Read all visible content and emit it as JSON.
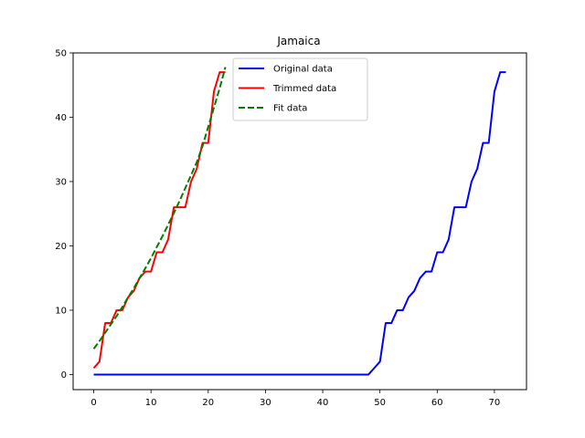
{
  "chart_data": {
    "type": "line",
    "title": "Jamaica",
    "xlabel": "",
    "ylabel": "",
    "xlim": [
      -3.6,
      75.6
    ],
    "ylim": [
      -2.35,
      50
    ],
    "xticks": [
      0,
      10,
      20,
      30,
      40,
      50,
      60,
      70
    ],
    "yticks": [
      0,
      10,
      20,
      30,
      40,
      50
    ],
    "grid": false,
    "legend_position": "top-center",
    "series": [
      {
        "name": "Original data",
        "color": "#0000ff",
        "style": "solid",
        "x": [
          0,
          1,
          2,
          3,
          4,
          5,
          6,
          7,
          8,
          9,
          10,
          11,
          12,
          13,
          14,
          15,
          16,
          17,
          18,
          19,
          20,
          21,
          22,
          23,
          24,
          25,
          26,
          27,
          28,
          29,
          30,
          31,
          32,
          33,
          34,
          35,
          36,
          37,
          38,
          39,
          40,
          41,
          42,
          43,
          44,
          45,
          46,
          47,
          48,
          49,
          50,
          51,
          52,
          53,
          54,
          55,
          56,
          57,
          58,
          59,
          60,
          61,
          62,
          63,
          64,
          65,
          66,
          67,
          68,
          69,
          70,
          71,
          72
        ],
        "y": [
          0,
          0,
          0,
          0,
          0,
          0,
          0,
          0,
          0,
          0,
          0,
          0,
          0,
          0,
          0,
          0,
          0,
          0,
          0,
          0,
          0,
          0,
          0,
          0,
          0,
          0,
          0,
          0,
          0,
          0,
          0,
          0,
          0,
          0,
          0,
          0,
          0,
          0,
          0,
          0,
          0,
          0,
          0,
          0,
          0,
          0,
          0,
          0,
          0,
          1,
          2,
          8,
          8,
          10,
          10,
          12,
          13,
          15,
          16,
          16,
          19,
          19,
          21,
          26,
          26,
          26,
          30,
          32,
          36,
          36,
          44,
          47,
          47
        ]
      },
      {
        "name": "Trimmed data",
        "color": "#ff0000",
        "style": "solid",
        "x": [
          0,
          1,
          2,
          3,
          4,
          5,
          6,
          7,
          8,
          9,
          10,
          11,
          12,
          13,
          14,
          15,
          16,
          17,
          18,
          19,
          20,
          21,
          22,
          23
        ],
        "y": [
          1,
          2,
          8,
          8,
          10,
          10,
          12,
          13,
          15,
          16,
          16,
          19,
          19,
          21,
          26,
          26,
          26,
          30,
          32,
          36,
          36,
          44,
          47,
          47
        ]
      },
      {
        "name": "Fit data",
        "color": "#008000",
        "style": "dashed",
        "x": [
          0,
          1,
          2,
          3,
          4,
          5,
          6,
          7,
          8,
          9,
          10,
          11,
          12,
          13,
          14,
          15,
          16,
          17,
          18,
          19,
          20,
          21,
          22,
          23
        ],
        "y": [
          4.0,
          5.2,
          6.5,
          7.8,
          9.1,
          10.5,
          12.0,
          13.4,
          15.0,
          16.5,
          18.1,
          19.8,
          21.5,
          23.3,
          25.1,
          27.0,
          29.0,
          31.0,
          33.0,
          35.5,
          38.5,
          41.5,
          44.5,
          47.8
        ]
      }
    ]
  }
}
